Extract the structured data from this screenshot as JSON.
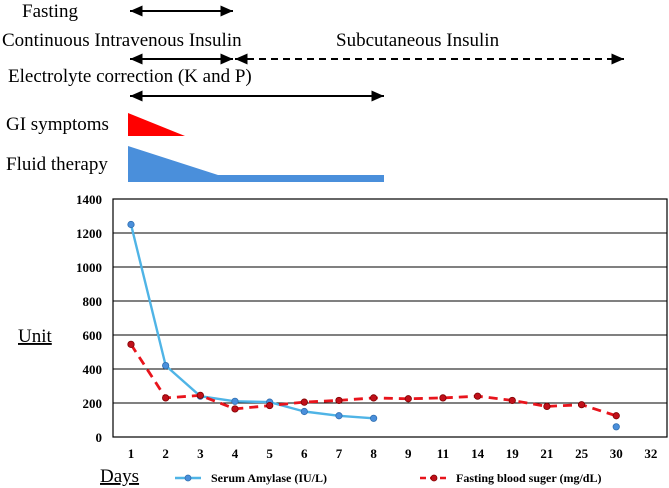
{
  "timeline": {
    "fasting_label": "Fasting",
    "iv_insulin_label": "Continuous Intravenous Insulin",
    "sc_insulin_label": "Subcutaneous Insulin",
    "electrolyte_label": "Electrolyte correction (K and P)",
    "gi_label": "GI symptoms",
    "fluid_label": "Fluid therapy",
    "colors": {
      "gi": "#ff0000",
      "fluid": "#4a8fdb",
      "arrow": "#000000"
    },
    "bars": [
      {
        "name": "fasting",
        "start_day_index": 0,
        "end_day_index": 3,
        "style": "solid"
      },
      {
        "name": "iv_insulin",
        "start_day_index": 0,
        "end_day_index": 3,
        "style": "solid"
      },
      {
        "name": "sc_insulin",
        "start_day_index": 3,
        "end_day_index": 13.8,
        "style": "dashed"
      },
      {
        "name": "electrolyte",
        "start_day_index": 0,
        "end_day_index": 7.1,
        "style": "solid"
      }
    ],
    "gi_span_day_index": [
      0,
      1.5
    ],
    "fluid_taper_day_index": [
      0,
      2.5
    ],
    "fluid_end_day_index": 7.1
  },
  "chart_data": {
    "type": "line",
    "x_categories": [
      "1",
      "2",
      "3",
      "4",
      "5",
      "6",
      "7",
      "8",
      "9",
      "11",
      "14",
      "19",
      "21",
      "25",
      "30",
      "32"
    ],
    "xlabel": "Days",
    "ylabel": "Unit",
    "ylim": [
      0,
      1400
    ],
    "yticks": [
      "0",
      "200",
      "400",
      "600",
      "800",
      "1000",
      "1200",
      "1400"
    ],
    "yticks_values": [
      0,
      200,
      400,
      600,
      800,
      1000,
      1200,
      1400
    ],
    "grid": true,
    "series": [
      {
        "name": "Serum Amylase (IU/L)",
        "color": "#4fb4e6",
        "style": "solid",
        "points": [
          {
            "day": "1",
            "value": 1250
          },
          {
            "day": "2",
            "value": 420
          },
          {
            "day": "3",
            "value": 240
          },
          {
            "day": "4",
            "value": 210
          },
          {
            "day": "5",
            "value": 205
          },
          {
            "day": "6",
            "value": 150
          },
          {
            "day": "7",
            "value": 125
          },
          {
            "day": "8",
            "value": 110
          },
          {
            "day": "30",
            "value": 60
          }
        ],
        "segments_break_after_day": "8"
      },
      {
        "name": "Fasting blood suger (mg/dL)",
        "color": "#e8141c",
        "style": "dashed",
        "points": [
          {
            "day": "1",
            "value": 545
          },
          {
            "day": "2",
            "value": 230
          },
          {
            "day": "3",
            "value": 245
          },
          {
            "day": "4",
            "value": 165
          },
          {
            "day": "5",
            "value": 185
          },
          {
            "day": "6",
            "value": 205
          },
          {
            "day": "7",
            "value": 215
          },
          {
            "day": "8",
            "value": 230
          },
          {
            "day": "9",
            "value": 225
          },
          {
            "day": "11",
            "value": 230
          },
          {
            "day": "14",
            "value": 240
          },
          {
            "day": "19",
            "value": 215
          },
          {
            "day": "21",
            "value": 180
          },
          {
            "day": "25",
            "value": 190
          },
          {
            "day": "30",
            "value": 125
          }
        ]
      }
    ],
    "legend": {
      "position": "bottom",
      "items": [
        "Serum Amylase (IU/L)",
        "Fasting blood suger (mg/dL)"
      ]
    }
  }
}
